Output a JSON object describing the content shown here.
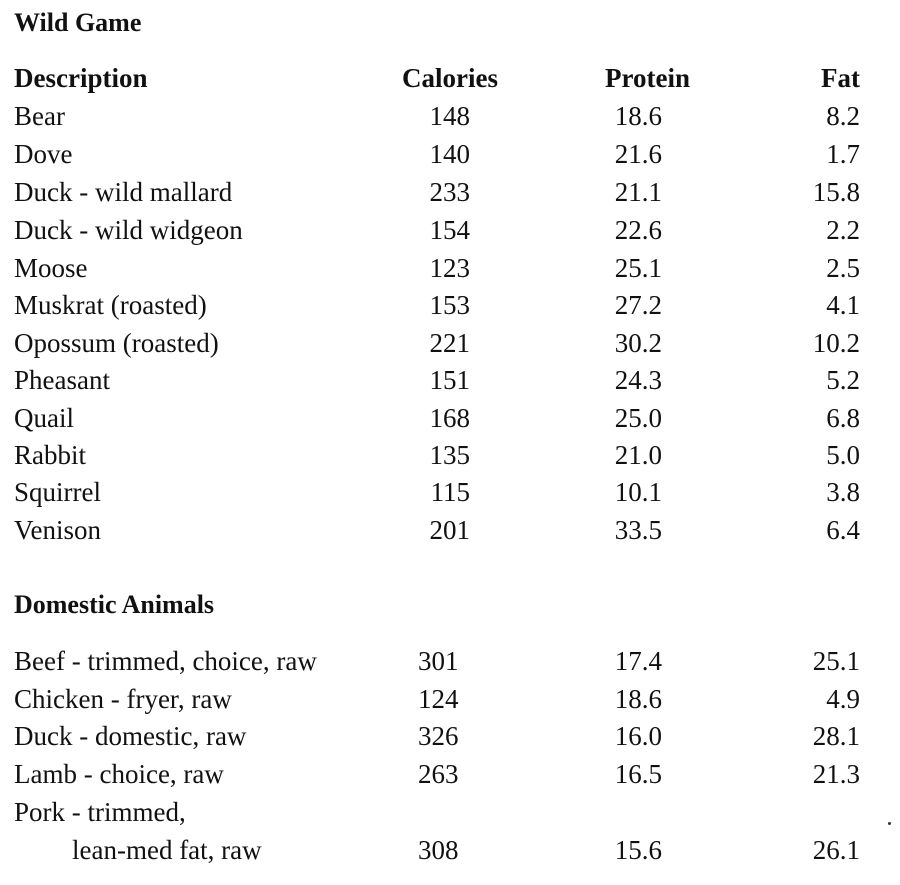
{
  "sections": {
    "wild_game_title": "Wild Game",
    "domestic_title": "Domestic Animals"
  },
  "header": {
    "description": "Description",
    "calories": "Calories",
    "protein": "Protein",
    "fat": "Fat"
  },
  "wild_game": [
    {
      "name": "Bear",
      "calories": "148",
      "protein": "18.6",
      "fat": "8.2"
    },
    {
      "name": "Dove",
      "calories": "140",
      "protein": "21.6",
      "fat": "1.7"
    },
    {
      "name": "Duck - wild mallard",
      "calories": "233",
      "protein": "21.1",
      "fat": "15.8"
    },
    {
      "name": "Duck - wild widgeon",
      "calories": "154",
      "protein": "22.6",
      "fat": "2.2"
    },
    {
      "name": "Moose",
      "calories": "123",
      "protein": "25.1",
      "fat": "2.5"
    },
    {
      "name": "Muskrat (roasted)",
      "calories": "153",
      "protein": "27.2",
      "fat": "4.1"
    },
    {
      "name": "Opossum (roasted)",
      "calories": "221",
      "protein": "30.2",
      "fat": "10.2"
    },
    {
      "name": "Pheasant",
      "calories": "151",
      "protein": "24.3",
      "fat": "5.2"
    },
    {
      "name": "Quail",
      "calories": "168",
      "protein": "25.0",
      "fat": "6.8"
    },
    {
      "name": "Rabbit",
      "calories": "135",
      "protein": "21.0",
      "fat": "5.0"
    },
    {
      "name": "Squirrel",
      "calories": "115",
      "protein": "10.1",
      "fat": "3.8"
    },
    {
      "name": "Venison",
      "calories": "201",
      "protein": "33.5",
      "fat": "6.4"
    }
  ],
  "domestic": [
    {
      "name": "Beef - trimmed, choice, raw",
      "calories": "301",
      "protein": "17.4",
      "fat": "25.1"
    },
    {
      "name": "Chicken - fryer, raw",
      "calories": "124",
      "protein": "18.6",
      "fat": "4.9"
    },
    {
      "name": "Duck - domestic, raw",
      "calories": "326",
      "protein": "16.0",
      "fat": "28.1"
    },
    {
      "name": "Lamb - choice, raw",
      "calories": "263",
      "protein": "16.5",
      "fat": "21.3"
    }
  ],
  "pork": {
    "name_line1": "Pork - trimmed,",
    "name_line2": "lean-med fat, raw",
    "calories": "308",
    "protein": "15.6",
    "fat": "26.1"
  }
}
